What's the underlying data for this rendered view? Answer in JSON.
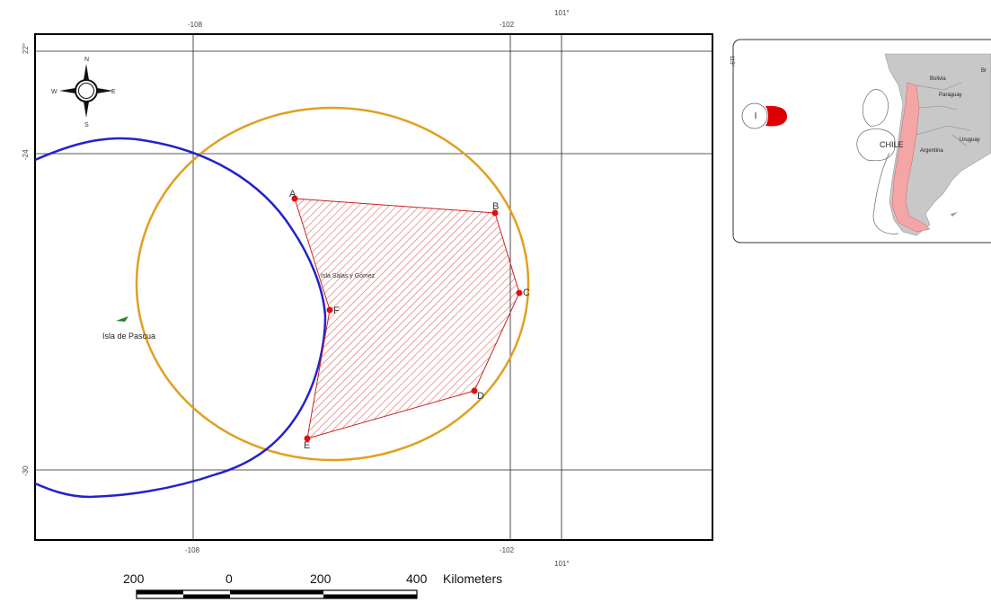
{
  "map": {
    "top_ticks": [
      "-108",
      "-102",
      "101°"
    ],
    "bottom_ticks": [
      "-108",
      "-102",
      "101°"
    ],
    "left_ticks": [
      "22°",
      "-24",
      "-30"
    ],
    "points": [
      {
        "label": "A"
      },
      {
        "label": "B"
      },
      {
        "label": "C"
      },
      {
        "label": "D"
      },
      {
        "label": "E"
      },
      {
        "label": "F"
      }
    ],
    "island_center_label": "Isla Salas y Gómez",
    "island_west_label": "Isla de Pascua",
    "colors": {
      "eez_line": "#2222cc",
      "circle": "#e0a020",
      "polygon_fill": "#cc2222",
      "point": "#dd1111",
      "island": "#2e7d32",
      "chile_highlight": "#f4a6a6",
      "land": "#c8c8c8"
    },
    "north_arrow": {
      "n": "N",
      "s": "S",
      "e": "E",
      "w": "W"
    }
  },
  "inset": {
    "countries": [
      "Bolivia",
      "Paraguay",
      "Argentina",
      "Uruguay",
      "Br",
      "CHILE"
    ],
    "side_label": "115°"
  },
  "scale_bar": {
    "labels": [
      "200",
      "0",
      "200",
      "400"
    ],
    "unit": "Kilometers"
  }
}
